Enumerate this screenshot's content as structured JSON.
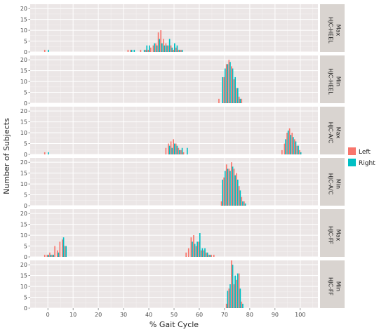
{
  "chart_data": {
    "type": "bar",
    "xlabel": "% Gait Cycle",
    "ylabel": "Number of Subjects",
    "xlim": [
      -7,
      107
    ],
    "ylim": [
      0,
      22
    ],
    "x_ticks": [
      0,
      10,
      20,
      30,
      40,
      50,
      60,
      70,
      80,
      90,
      100
    ],
    "y_ticks": [
      0,
      5,
      10,
      15,
      20
    ],
    "grid": true,
    "legend_position": "right",
    "series": [
      {
        "name": "Left",
        "color": "#F8766D"
      },
      {
        "name": "Right",
        "color": "#00BFC4"
      }
    ],
    "panels": [
      {
        "strip_line1": "HJC-HEEL",
        "strip_line2": "Max",
        "left": {
          "x": [
            -1,
            32,
            33,
            37,
            39,
            40,
            41,
            42,
            43,
            44,
            45,
            46,
            47,
            48,
            49,
            50,
            51,
            52,
            53
          ],
          "y": [
            1,
            1,
            1,
            1,
            1,
            1,
            2,
            3,
            4,
            9,
            10,
            6,
            4,
            3,
            3,
            1,
            2,
            1,
            1
          ]
        },
        "right": {
          "x": [
            0,
            33,
            34,
            38,
            39,
            40,
            42,
            43,
            44,
            45,
            46,
            47,
            48,
            49,
            50,
            51,
            52,
            53
          ],
          "y": [
            1,
            1,
            1,
            1,
            3,
            3,
            4,
            3,
            6,
            4,
            3,
            3,
            6,
            2,
            4,
            3,
            1,
            1
          ]
        }
      },
      {
        "strip_line1": "HJC-HEEL",
        "strip_line2": "Min",
        "left": {
          "x": [
            68,
            70,
            71,
            72,
            73,
            74,
            75,
            76,
            77
          ],
          "y": [
            2,
            12,
            18,
            20,
            17,
            11,
            7,
            3,
            2
          ]
        },
        "right": {
          "x": [
            69,
            70,
            71,
            72,
            73,
            74,
            75,
            76
          ],
          "y": [
            12,
            16,
            18,
            19,
            16,
            12,
            7,
            2
          ]
        }
      },
      {
        "strip_line1": "HJC-A/C",
        "strip_line2": "Max",
        "left": {
          "x": [
            -1,
            47,
            48,
            49,
            50,
            51,
            52,
            53,
            54,
            93,
            94,
            95,
            96,
            97,
            98,
            99,
            100
          ],
          "y": [
            1,
            3,
            5,
            6,
            7,
            5,
            3,
            2,
            1,
            2,
            5,
            10,
            12,
            10,
            7,
            4,
            2
          ]
        },
        "right": {
          "x": [
            0,
            48,
            49,
            50,
            51,
            52,
            53,
            55,
            94,
            95,
            96,
            97,
            98,
            99,
            100
          ],
          "y": [
            1,
            4,
            3,
            5,
            4,
            2,
            3,
            3,
            7,
            11,
            9,
            8,
            6,
            4,
            1
          ]
        }
      },
      {
        "strip_line1": "HJC-A/C",
        "strip_line2": "Min",
        "left": {
          "x": [
            69,
            70,
            71,
            72,
            73,
            74,
            75,
            76,
            77,
            78
          ],
          "y": [
            2,
            13,
            19,
            17,
            20,
            17,
            15,
            9,
            4,
            2
          ]
        },
        "right": {
          "x": [
            69,
            70,
            71,
            72,
            73,
            74,
            75,
            76,
            77,
            78
          ],
          "y": [
            12,
            16,
            17,
            16,
            18,
            14,
            12,
            7,
            2,
            1
          ]
        }
      },
      {
        "strip_line1": "HJC-FF",
        "strip_line2": "Max",
        "left": {
          "x": [
            -1,
            0,
            1,
            2,
            3,
            4,
            5,
            6,
            7,
            55,
            56,
            57,
            58,
            59,
            60,
            61,
            62,
            63,
            64,
            65,
            66
          ],
          "y": [
            1,
            1,
            2,
            1,
            5,
            3,
            7,
            8,
            5,
            2,
            4,
            9,
            10,
            5,
            7,
            3,
            3,
            2,
            1,
            1,
            1
          ]
        },
        "right": {
          "x": [
            0,
            1,
            2,
            4,
            6,
            7,
            57,
            58,
            59,
            60,
            61,
            62,
            63,
            64
          ],
          "y": [
            1,
            1,
            1,
            2,
            9,
            5,
            7,
            6,
            7,
            11,
            4,
            4,
            2,
            1
          ]
        }
      },
      {
        "strip_line1": "HJC-FF",
        "strip_line2": "Min",
        "left": {
          "x": [
            71,
            72,
            73,
            74,
            75,
            76,
            77
          ],
          "y": [
            2,
            9,
            22,
            11,
            13,
            16,
            3
          ]
        },
        "right": {
          "x": [
            71,
            72,
            73,
            74,
            75,
            76,
            77
          ],
          "y": [
            8,
            11,
            20,
            15,
            16,
            9,
            2
          ]
        }
      }
    ]
  }
}
